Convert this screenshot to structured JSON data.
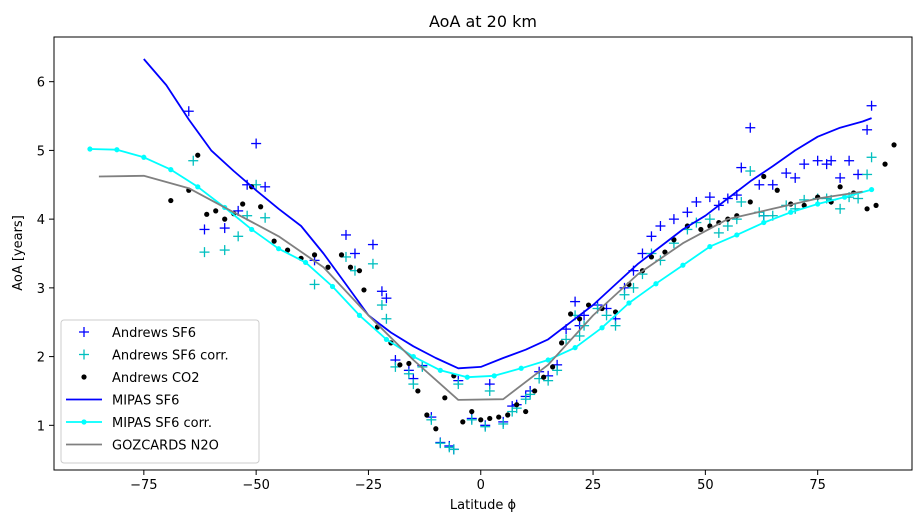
{
  "chart_data": {
    "type": "scatter",
    "title": "AoA at 20 km",
    "xlabel": "Latitude ϕ",
    "ylabel": "AoA [years]",
    "xlim": [
      -95,
      96
    ],
    "ylim": [
      0.35,
      6.65
    ],
    "xticks": [
      -75,
      -50,
      -25,
      0,
      25,
      50,
      75
    ],
    "xtick_labels": [
      "−75",
      "−50",
      "−25",
      "0",
      "25",
      "50",
      "75"
    ],
    "yticks": [
      1,
      2,
      3,
      4,
      5,
      6
    ],
    "ytick_labels": [
      "1",
      "2",
      "3",
      "4",
      "5",
      "6"
    ],
    "grid": false,
    "legend_position": "lower-left",
    "series": [
      {
        "name": "Andrews SF6",
        "kind": "marker-plus",
        "color": "#0000ff",
        "x": [
          -65,
          -61.5,
          -57,
          -54,
          -52,
          -50,
          -48,
          -37,
          -30,
          -28,
          -24,
          -22,
          -21,
          -19,
          -16,
          -15,
          -13,
          -11,
          -9,
          -7,
          -6,
          -5,
          -2,
          1,
          2,
          5,
          7,
          8,
          10,
          11,
          13,
          15,
          17,
          19,
          21,
          22,
          23,
          26,
          28,
          30,
          32,
          34,
          36,
          38,
          40,
          43,
          46,
          48,
          51,
          53,
          55,
          57,
          58,
          60,
          62,
          63,
          65,
          68,
          70,
          72,
          75,
          77,
          78,
          80,
          82,
          84,
          86,
          87
        ],
        "y": [
          5.57,
          3.85,
          3.87,
          4.12,
          4.5,
          5.1,
          4.47,
          3.4,
          3.77,
          3.5,
          3.63,
          2.95,
          2.85,
          1.95,
          1.8,
          1.68,
          1.87,
          1.12,
          0.75,
          0.7,
          0.65,
          1.65,
          1.1,
          1.0,
          1.6,
          1.05,
          1.28,
          1.3,
          1.42,
          1.5,
          1.78,
          1.72,
          1.88,
          2.4,
          2.8,
          2.45,
          2.6,
          2.75,
          2.7,
          2.55,
          3.0,
          3.25,
          3.5,
          3.75,
          3.9,
          4.0,
          4.1,
          4.25,
          4.32,
          4.2,
          4.3,
          4.35,
          4.75,
          5.33,
          4.5,
          4.05,
          4.5,
          4.67,
          4.6,
          4.8,
          4.85,
          4.8,
          4.85,
          4.6,
          4.85,
          4.65,
          5.3,
          5.65
        ]
      },
      {
        "name": "Andrews SF6 corr.",
        "kind": "marker-plus",
        "color": "#00bfbf",
        "x": [
          -64,
          -61.5,
          -57,
          -54,
          -52,
          -50,
          -48,
          -37,
          -30,
          -28,
          -24,
          -22,
          -21,
          -19,
          -16,
          -15,
          -13,
          -11,
          -9,
          -7,
          -6,
          -5,
          -2,
          1,
          2,
          5,
          7,
          8,
          10,
          11,
          13,
          15,
          17,
          19,
          21,
          22,
          23,
          26,
          28,
          30,
          32,
          34,
          36,
          38,
          40,
          43,
          46,
          48,
          51,
          53,
          55,
          57,
          58,
          60,
          62,
          63,
          65,
          68,
          70,
          72,
          75,
          77,
          78,
          80,
          82,
          84,
          86,
          87
        ],
        "y": [
          4.85,
          3.52,
          3.55,
          3.75,
          4.05,
          4.5,
          4.02,
          3.05,
          3.45,
          3.25,
          3.35,
          2.75,
          2.55,
          1.85,
          1.75,
          1.6,
          1.85,
          1.08,
          0.74,
          0.68,
          0.65,
          1.6,
          1.08,
          0.98,
          1.5,
          1.02,
          1.2,
          1.25,
          1.38,
          1.45,
          1.68,
          1.65,
          1.8,
          2.25,
          2.6,
          2.3,
          2.45,
          2.7,
          2.6,
          2.45,
          2.9,
          3.0,
          3.2,
          3.5,
          3.4,
          3.65,
          3.85,
          3.95,
          4.0,
          3.8,
          3.9,
          4.0,
          4.25,
          4.7,
          4.1,
          4.05,
          4.05,
          4.2,
          4.15,
          4.28,
          4.3,
          4.3,
          4.28,
          4.15,
          4.32,
          4.3,
          4.65,
          4.9
        ]
      },
      {
        "name": "Andrews CO2",
        "kind": "marker-dot",
        "color": "#000000",
        "x": [
          -69,
          -65,
          -63,
          -61,
          -59,
          -57,
          -55,
          -53,
          -51,
          -49,
          -46,
          -43,
          -40,
          -37,
          -34,
          -31,
          -29,
          -27,
          -26,
          -23,
          -20,
          -18,
          -16,
          -14,
          -12,
          -10,
          -8,
          -6,
          -4,
          -2,
          0,
          2,
          4,
          6,
          8,
          10,
          12,
          14,
          16,
          18,
          20,
          22,
          24,
          27,
          30,
          33,
          36,
          38,
          41,
          43,
          46,
          49,
          51,
          53,
          55,
          57,
          60,
          63,
          66,
          69,
          72,
          75,
          78,
          80,
          83,
          86,
          88,
          90,
          92
        ],
        "y": [
          4.27,
          4.42,
          4.93,
          4.07,
          4.12,
          4.0,
          4.08,
          4.22,
          4.47,
          4.18,
          3.68,
          3.55,
          3.43,
          3.48,
          3.3,
          3.48,
          3.3,
          3.25,
          2.97,
          2.43,
          2.2,
          1.88,
          1.9,
          1.5,
          1.15,
          0.95,
          1.4,
          1.72,
          1.05,
          1.2,
          1.08,
          1.1,
          1.12,
          1.15,
          1.3,
          1.2,
          1.5,
          1.7,
          1.85,
          2.2,
          2.62,
          2.55,
          2.75,
          2.7,
          2.65,
          3.05,
          3.25,
          3.45,
          3.52,
          3.7,
          3.9,
          3.85,
          3.9,
          3.95,
          4.0,
          4.05,
          4.25,
          4.62,
          4.42,
          4.22,
          4.2,
          4.32,
          4.25,
          4.47,
          4.38,
          4.15,
          4.2,
          4.8,
          5.08
        ]
      },
      {
        "name": "MIPAS SF6",
        "kind": "line",
        "color": "#0000ff",
        "x": [
          -75,
          -70,
          -65,
          -60,
          -55,
          -50,
          -45,
          -40,
          -35,
          -30,
          -25,
          -20,
          -15,
          -10,
          -5,
          0,
          5,
          10,
          15,
          20,
          25,
          30,
          35,
          40,
          45,
          50,
          55,
          60,
          65,
          70,
          75,
          80,
          85,
          87
        ],
        "y": [
          6.33,
          5.95,
          5.45,
          5.0,
          4.7,
          4.42,
          4.15,
          3.9,
          3.5,
          3.05,
          2.6,
          2.35,
          2.15,
          1.98,
          1.83,
          1.85,
          1.98,
          2.1,
          2.25,
          2.5,
          2.75,
          3.05,
          3.35,
          3.6,
          3.85,
          4.05,
          4.3,
          4.55,
          4.77,
          5.0,
          5.2,
          5.33,
          5.42,
          5.47
        ]
      },
      {
        "name": "MIPAS SF6 corr.",
        "kind": "line-dot",
        "color": "#00ffff",
        "x": [
          -87,
          -81,
          -75,
          -69,
          -63,
          -57,
          -51,
          -45,
          -39,
          -33,
          -27,
          -21,
          -15,
          -9,
          -3,
          3,
          9,
          15,
          21,
          27,
          33,
          39,
          45,
          51,
          57,
          63,
          69,
          75,
          81,
          87
        ],
        "y": [
          5.02,
          5.01,
          4.9,
          4.72,
          4.47,
          4.17,
          3.85,
          3.57,
          3.37,
          3.02,
          2.6,
          2.25,
          2.0,
          1.8,
          1.7,
          1.72,
          1.83,
          1.95,
          2.13,
          2.42,
          2.78,
          3.06,
          3.33,
          3.6,
          3.77,
          3.95,
          4.1,
          4.22,
          4.32,
          4.43
        ]
      },
      {
        "name": "GOZCARDS N2O",
        "kind": "line",
        "color": "#808080",
        "x": [
          -85,
          -75,
          -65,
          -55,
          -45,
          -35,
          -25,
          -15,
          -5,
          5,
          15,
          25,
          35,
          45,
          55,
          65,
          75,
          85
        ],
        "y": [
          4.62,
          4.63,
          4.45,
          4.1,
          3.75,
          3.3,
          2.6,
          1.95,
          1.37,
          1.38,
          1.88,
          2.6,
          3.2,
          3.65,
          4.0,
          4.15,
          4.3,
          4.4
        ]
      }
    ]
  }
}
